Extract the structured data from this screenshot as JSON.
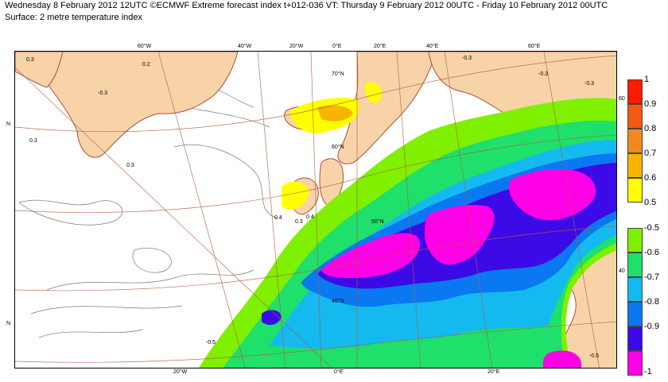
{
  "header": {
    "title": "Wednesday 8 February 2012 12UTC ©ECMWF Extreme forecast index t+012-036 VT: Thursday 9 February 2012 00UTC - Friday 10 February 2012 00UTC",
    "subtitle": "Surface: 2 metre temperature index"
  },
  "map": {
    "top_longitudes": [
      "60°W",
      "40°W",
      "20°W",
      "0°E",
      "20°E",
      "40°E",
      "60°E"
    ],
    "bottom_longitudes": [
      "20°W",
      "0°E",
      "20°E"
    ],
    "latitudes": [
      "70°N",
      "60°N",
      "50°N",
      "40°N"
    ],
    "left_edge_labels": [
      "N",
      "N"
    ],
    "right_edge_labels": [
      "60",
      "40"
    ],
    "contour_labels": [
      "0.3",
      "-0.3",
      "0.2",
      "0.3",
      "0.3",
      "0.4",
      "0.3",
      "0.4",
      "-0.3",
      "-0.3",
      "-0.3",
      "-0.5",
      "-0.5"
    ],
    "colors": {
      "land": "#f8d3a8",
      "coast": "#a8503c",
      "graticule": "#b35a3c",
      "ocean": "#ffffff"
    }
  },
  "legend_warm": {
    "labels": [
      "1",
      "0.9",
      "0.8",
      "0.7",
      "0.6",
      "0.5"
    ],
    "colors": [
      "#ff1a00",
      "#f25a14",
      "#f08a1e",
      "#f7b400",
      "#ffff00"
    ]
  },
  "legend_cold": {
    "labels": [
      "-0.5",
      "-0.6",
      "-0.7",
      "-0.8",
      "-0.9",
      "-1"
    ],
    "colors": [
      "#7ff000",
      "#1ee06a",
      "#14b9f0",
      "#0a78f0",
      "#3c0ae6",
      "#ff00e6"
    ]
  }
}
